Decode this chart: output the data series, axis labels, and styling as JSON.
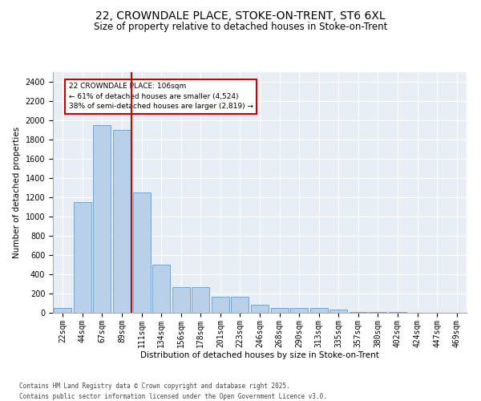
{
  "title_line1": "22, CROWNDALE PLACE, STOKE-ON-TRENT, ST6 6XL",
  "title_line2": "Size of property relative to detached houses in Stoke-on-Trent",
  "xlabel": "Distribution of detached houses by size in Stoke-on-Trent",
  "ylabel": "Number of detached properties",
  "categories": [
    "22sqm",
    "44sqm",
    "67sqm",
    "89sqm",
    "111sqm",
    "134sqm",
    "156sqm",
    "178sqm",
    "201sqm",
    "223sqm",
    "246sqm",
    "268sqm",
    "290sqm",
    "313sqm",
    "335sqm",
    "357sqm",
    "380sqm",
    "402sqm",
    "424sqm",
    "447sqm",
    "469sqm"
  ],
  "values": [
    50,
    1150,
    1950,
    1900,
    1250,
    500,
    270,
    270,
    170,
    170,
    80,
    50,
    50,
    50,
    30,
    10,
    10,
    5,
    3,
    2,
    2
  ],
  "bar_color": "#b8d0e8",
  "bar_edge_color": "#6699cc",
  "background_color": "#e8eef5",
  "grid_color": "#ffffff",
  "vline_x_index": 3.5,
  "vline_color": "#cc0000",
  "annotation_box_text": "22 CROWNDALE PLACE: 106sqm\n← 61% of detached houses are smaller (4,524)\n38% of semi-detached houses are larger (2,819) →",
  "annotation_box_color": "#cc0000",
  "ylim": [
    0,
    2500
  ],
  "yticks": [
    0,
    200,
    400,
    600,
    800,
    1000,
    1200,
    1400,
    1600,
    1800,
    2000,
    2200,
    2400
  ],
  "footer_line1": "Contains HM Land Registry data © Crown copyright and database right 2025.",
  "footer_line2": "Contains public sector information licensed under the Open Government Licence v3.0.",
  "title_fontsize": 10,
  "subtitle_fontsize": 8.5,
  "axis_label_fontsize": 7.5,
  "tick_fontsize": 7,
  "annotation_fontsize": 6.5,
  "footer_fontsize": 5.5
}
